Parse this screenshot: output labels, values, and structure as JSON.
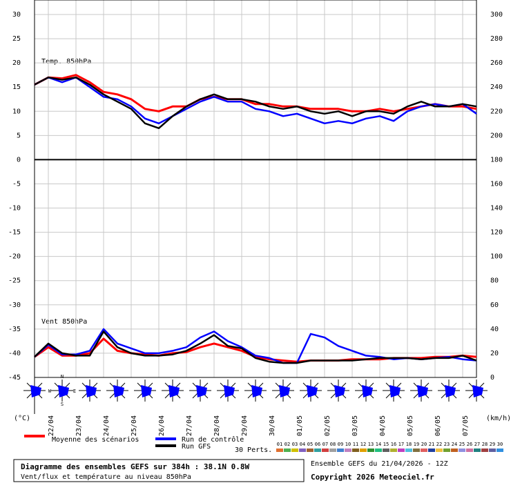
{
  "chart_data": {
    "type": "line",
    "title": "Diagramme des ensembles GEFS sur 384h : 38.1N 0.8W",
    "subtitle": "Vent/flux et température au niveau 850hPa",
    "run_label": "Ensemble GEFS du 21/04/2026 - 12Z",
    "copyright": "Copyright 2026 Meteociel.fr",
    "temp_label": "Temp. 850hPa",
    "wind_label": "Vent 850hPa",
    "y_unit": "(°C)",
    "y2_unit": "(km/h)",
    "compass": [
      "N",
      "W",
      "E",
      "S"
    ],
    "members_label": "30 Perts.",
    "members": [
      {
        "name": "01",
        "color": "#e07030"
      },
      {
        "name": "02",
        "color": "#50b050"
      },
      {
        "name": "03",
        "color": "#d0c000"
      },
      {
        "name": "04",
        "color": "#8060c0"
      },
      {
        "name": "05",
        "color": "#a06030"
      },
      {
        "name": "06",
        "color": "#30a0a0"
      },
      {
        "name": "07",
        "color": "#d04040"
      },
      {
        "name": "08",
        "color": "#a0a0a0"
      },
      {
        "name": "09",
        "color": "#4080d0"
      },
      {
        "name": "10",
        "color": "#c080c0"
      },
      {
        "name": "11",
        "color": "#806020"
      },
      {
        "name": "12",
        "color": "#e0a000"
      },
      {
        "name": "13",
        "color": "#309030"
      },
      {
        "name": "14",
        "color": "#20c080"
      },
      {
        "name": "15",
        "color": "#606060"
      },
      {
        "name": "16",
        "color": "#b0b030"
      },
      {
        "name": "17",
        "color": "#c040c0"
      },
      {
        "name": "18",
        "color": "#50c0e0"
      },
      {
        "name": "19",
        "color": "#807040"
      },
      {
        "name": "20",
        "color": "#e06060"
      },
      {
        "name": "21",
        "color": "#2040a0"
      },
      {
        "name": "22",
        "color": "#f0c040"
      },
      {
        "name": "23",
        "color": "#70a030"
      },
      {
        "name": "24",
        "color": "#c06020"
      },
      {
        "name": "25",
        "color": "#9090e0"
      },
      {
        "name": "26",
        "color": "#d070a0"
      },
      {
        "name": "27",
        "color": "#208080"
      },
      {
        "name": "28",
        "color": "#a04040"
      },
      {
        "name": "29",
        "color": "#6060a0"
      },
      {
        "name": "30",
        "color": "#3090e0"
      }
    ],
    "categories": [
      null,
      "22/04",
      null,
      "23/04",
      null,
      "24/04",
      null,
      "25/04",
      null,
      "26/04",
      null,
      "27/04",
      null,
      "28/04",
      null,
      "29/04",
      null,
      "30/04",
      null,
      "01/05",
      null,
      "02/05",
      null,
      "03/05",
      null,
      "04/05",
      null,
      "05/05",
      null,
      "06/05",
      null,
      "07/05",
      null
    ],
    "ylim": [
      -45,
      33
    ],
    "yticks": [
      30,
      25,
      20,
      15,
      10,
      5,
      0,
      -5,
      -10,
      -15,
      -20,
      -25,
      -30,
      -35,
      -40,
      -45
    ],
    "y2lim": [
      0,
      312
    ],
    "y2ticks": [
      300,
      280,
      260,
      240,
      220,
      200,
      180,
      160,
      140,
      120,
      100,
      80,
      60,
      40,
      20,
      0
    ],
    "grid": true,
    "series": [
      {
        "name": "Moyenne des scénarios",
        "color": "#ff0000",
        "values": [
          15.5,
          17,
          16.8,
          17.5,
          16,
          14,
          13.5,
          12.5,
          10.5,
          10,
          11,
          11,
          12.5,
          13,
          12.5,
          12.5,
          11.5,
          11.5,
          11,
          11,
          10.5,
          10.5,
          10.5,
          10,
          10,
          10.5,
          10,
          10.5,
          11,
          11.5,
          11,
          11,
          10.5
        ],
        "wind": [
          17,
          25,
          18,
          18,
          20,
          32,
          22,
          20,
          19,
          18,
          20,
          21,
          25,
          28,
          25,
          22,
          17,
          15,
          14,
          13,
          14,
          14,
          14,
          15,
          15,
          15,
          16,
          16,
          16,
          17,
          17,
          18,
          17
        ]
      },
      {
        "name": "Run de contrôle",
        "color": "#0000ff",
        "values": [
          15.5,
          17,
          16,
          17,
          15,
          13,
          12.5,
          11,
          8.5,
          7.5,
          9,
          10.5,
          12,
          13,
          12,
          12,
          10.5,
          10,
          9,
          9.5,
          8.5,
          7.5,
          8,
          7.5,
          8.5,
          9,
          8,
          10,
          11,
          11.5,
          11,
          11.5,
          9.5
        ],
        "wind": [
          17,
          27,
          19,
          19,
          22,
          40,
          28,
          24,
          20,
          20,
          22,
          25,
          33,
          38,
          30,
          25,
          18,
          16,
          12,
          12,
          36,
          33,
          26,
          22,
          18,
          17,
          15,
          16,
          15,
          16,
          17,
          15,
          14
        ]
      },
      {
        "name": "Run GFS",
        "color": "#000000",
        "values": [
          15.5,
          17,
          16.5,
          17,
          15.5,
          13.5,
          12,
          10.5,
          7.5,
          6.5,
          9,
          11,
          12.5,
          13.5,
          12.5,
          12.5,
          12,
          11,
          10.5,
          11,
          10,
          9.5,
          10,
          9,
          10,
          10,
          9.5,
          11,
          12,
          11,
          11,
          11.5,
          11
        ],
        "wind": [
          17,
          28,
          20,
          18,
          18,
          38,
          25,
          20,
          18,
          18,
          19,
          22,
          28,
          35,
          26,
          24,
          16,
          13,
          12,
          12,
          14,
          14,
          14,
          14,
          15,
          16,
          16,
          16,
          15,
          16,
          16,
          18,
          14
        ]
      }
    ]
  }
}
